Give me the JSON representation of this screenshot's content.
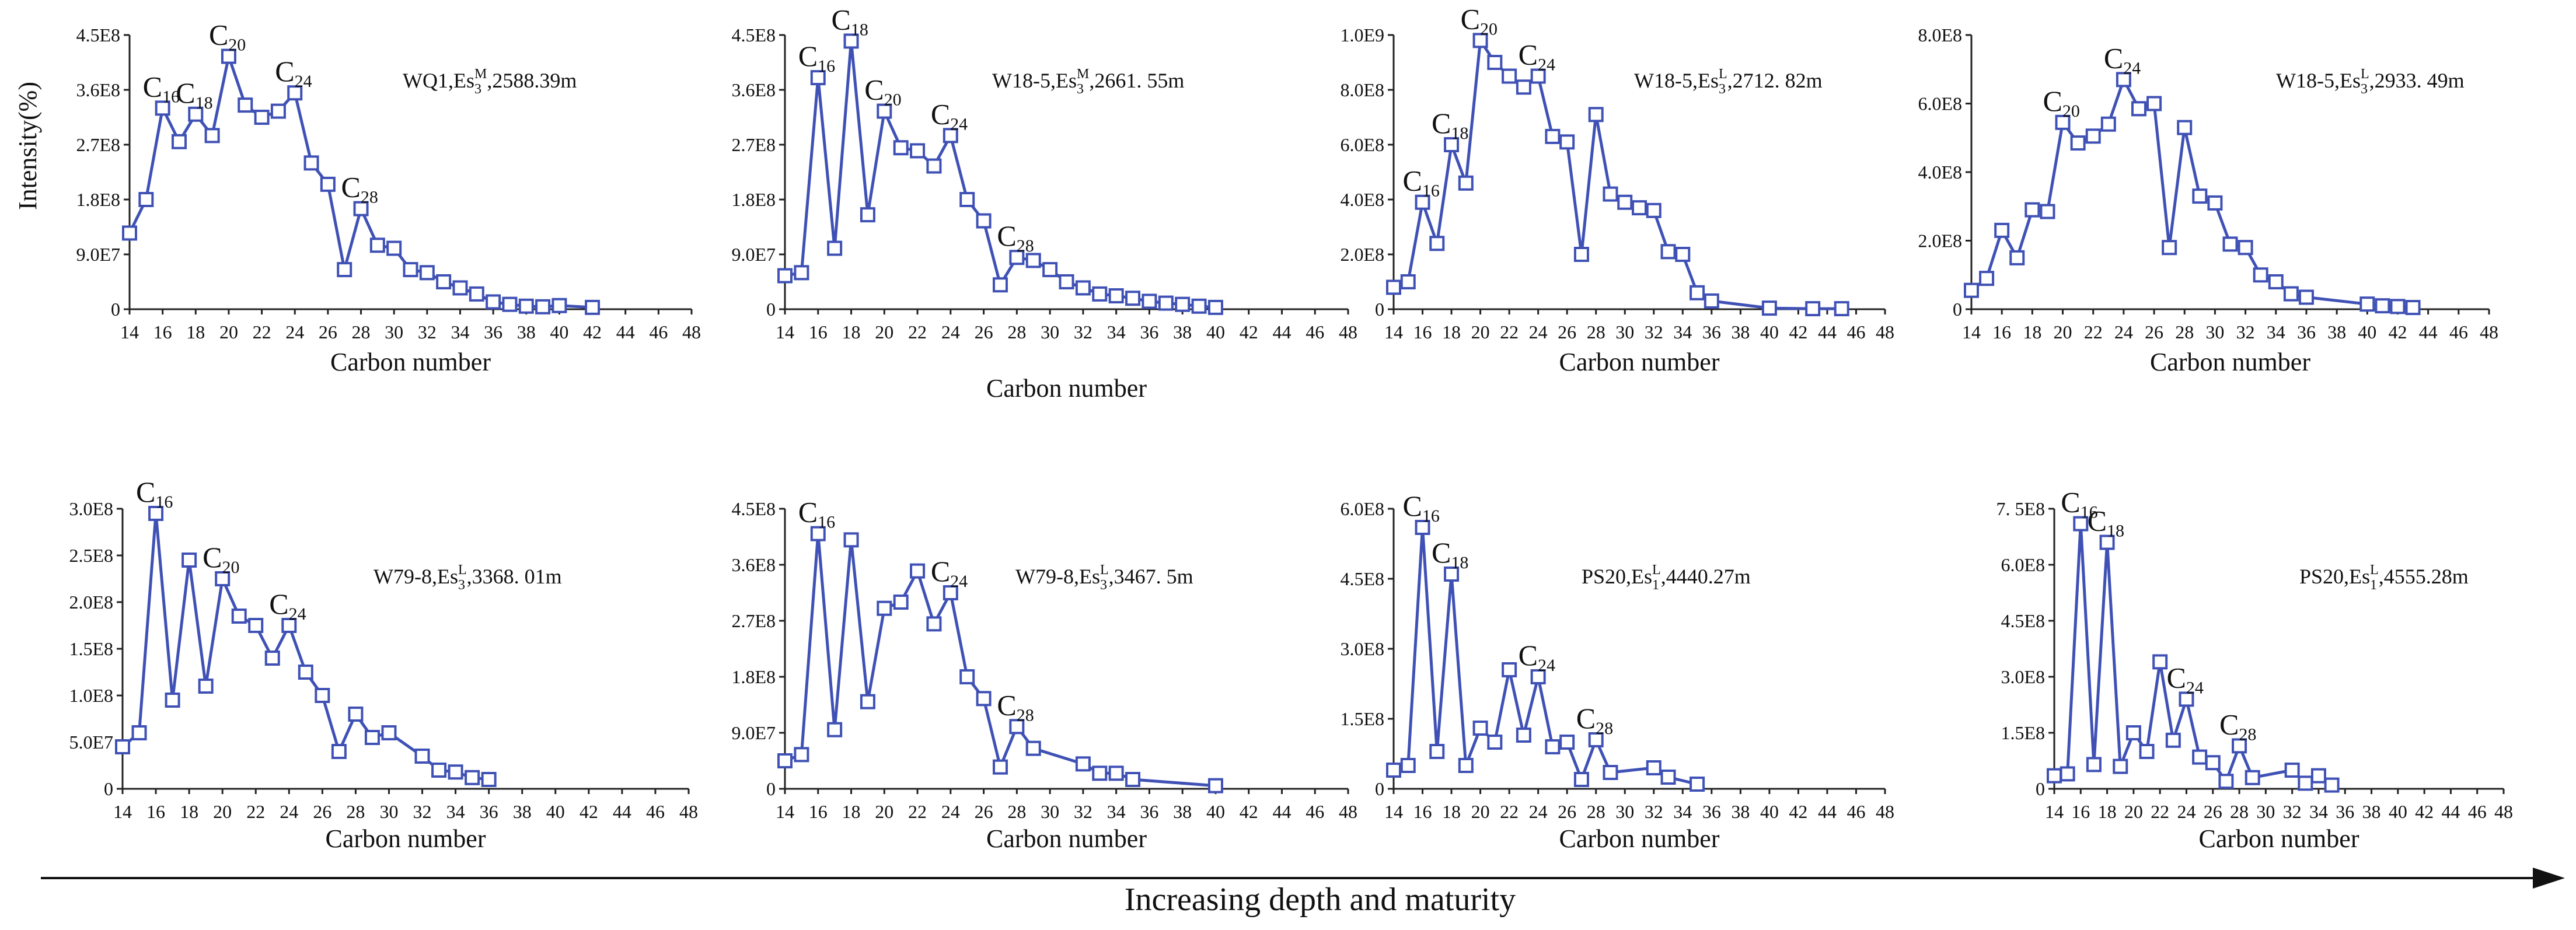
{
  "figure": {
    "ylabel": "Intensity(%)",
    "bottom_caption": "Increasing depth and maturity"
  },
  "chart_data": [
    {
      "type": "line",
      "title": "WQ1,Es3M,2588.39m",
      "sample": {
        "well": "WQ1,Es",
        "sub": "3",
        "sup": "M",
        "depth": ",2588.39m"
      },
      "xlabel": "Carbon number",
      "ylabel": "Intensity(%)",
      "xlim": [
        14,
        48
      ],
      "ylim": [
        0,
        450000000.0
      ],
      "xticks": [
        "14",
        "16",
        "18",
        "20",
        "22",
        "24",
        "26",
        "28",
        "30",
        "32",
        "34",
        "36",
        "38",
        "40",
        "42",
        "44",
        "46",
        "48"
      ],
      "yticks": [
        {
          "v": 0,
          "label": "0"
        },
        {
          "v": 90000000.0,
          "label": "9.0E7"
        },
        {
          "v": 180000000.0,
          "label": "1.8E8"
        },
        {
          "v": 270000000.0,
          "label": "2.7E8"
        },
        {
          "v": 360000000.0,
          "label": "3.6E8"
        },
        {
          "v": 450000000.0,
          "label": "4.5E8"
        }
      ],
      "x": [
        14,
        15,
        16,
        17,
        18,
        19,
        20,
        21,
        22,
        23,
        24,
        25,
        26,
        27,
        28,
        29,
        30,
        31,
        32,
        33,
        34,
        35,
        36,
        37,
        38,
        39,
        40,
        42
      ],
      "values": [
        125000000.0,
        180000000.0,
        330000000.0,
        275000000.0,
        320000000.0,
        285000000.0,
        415000000.0,
        335000000.0,
        315000000.0,
        325000000.0,
        355000000.0,
        240000000.0,
        205000000.0,
        65000000.0,
        165000000.0,
        105000000.0,
        100000000.0,
        65000000.0,
        60000000.0,
        45000000.0,
        35000000.0,
        25000000.0,
        12000000.0,
        8000000.0,
        5000000.0,
        4000000.0,
        6000000.0,
        3000000.0
      ],
      "annotations": [
        {
          "n": "16",
          "x": 16,
          "v": 330000000.0
        },
        {
          "n": "18",
          "x": 18,
          "v": 320000000.0
        },
        {
          "n": "20",
          "x": 20,
          "v": 415000000.0
        },
        {
          "n": "24",
          "x": 24,
          "v": 355000000.0
        },
        {
          "n": "28",
          "x": 28,
          "v": 165000000.0
        }
      ]
    },
    {
      "type": "line",
      "title": "W18-5,Es3M,2661. 55m",
      "sample": {
        "well": "W18-5,Es",
        "sub": "3",
        "sup": "M",
        "depth": ",2661. 55m"
      },
      "xlabel": "Carbon number",
      "ylabel": "",
      "xlim": [
        14,
        48
      ],
      "ylim": [
        0,
        450000000.0
      ],
      "xticks": [
        "14",
        "16",
        "18",
        "20",
        "22",
        "24",
        "26",
        "28",
        "30",
        "32",
        "34",
        "36",
        "38",
        "40",
        "42",
        "44",
        "46",
        "48"
      ],
      "yticks": [
        {
          "v": 0,
          "label": "0"
        },
        {
          "v": 90000000.0,
          "label": "9.0E7"
        },
        {
          "v": 180000000.0,
          "label": "1.8E8"
        },
        {
          "v": 270000000.0,
          "label": "2.7E8"
        },
        {
          "v": 360000000.0,
          "label": "3.6E8"
        },
        {
          "v": 450000000.0,
          "label": "4.5E8"
        }
      ],
      "x": [
        14,
        15,
        16,
        17,
        18,
        19,
        20,
        21,
        22,
        23,
        24,
        25,
        26,
        27,
        28,
        29,
        30,
        31,
        32,
        33,
        34,
        35,
        36,
        37,
        38,
        39,
        40
      ],
      "values": [
        55000000.0,
        60000000.0,
        380000000.0,
        100000000.0,
        440000000.0,
        155000000.0,
        325000000.0,
        265000000.0,
        260000000.0,
        235000000.0,
        285000000.0,
        180000000.0,
        145000000.0,
        40000000.0,
        85000000.0,
        80000000.0,
        65000000.0,
        45000000.0,
        35000000.0,
        25000000.0,
        22000000.0,
        18000000.0,
        13000000.0,
        10000000.0,
        8000000.0,
        5000000.0,
        3000000.0
      ],
      "annotations": [
        {
          "n": "16",
          "x": 16,
          "v": 380000000.0
        },
        {
          "n": "18",
          "x": 18,
          "v": 440000000.0
        },
        {
          "n": "20",
          "x": 20,
          "v": 325000000.0
        },
        {
          "n": "24",
          "x": 24,
          "v": 285000000.0
        },
        {
          "n": "28",
          "x": 28,
          "v": 85000000.0
        }
      ]
    },
    {
      "type": "line",
      "title": "W18-5,Es3L,2712. 82m",
      "sample": {
        "well": "W18-5,Es",
        "sub": "3",
        "sup": "L",
        "depth": ",2712. 82m"
      },
      "xlabel": "Carbon number",
      "ylabel": "",
      "xlim": [
        14,
        48
      ],
      "ylim": [
        0,
        1000000000.0
      ],
      "xticks": [
        "14",
        "16",
        "18",
        "20",
        "22",
        "24",
        "26",
        "28",
        "30",
        "32",
        "34",
        "36",
        "38",
        "40",
        "42",
        "44",
        "46",
        "48"
      ],
      "yticks": [
        {
          "v": 0,
          "label": "0"
        },
        {
          "v": 200000000.0,
          "label": "2.0E8"
        },
        {
          "v": 400000000.0,
          "label": "4.0E8"
        },
        {
          "v": 600000000.0,
          "label": "6.0E8"
        },
        {
          "v": 800000000.0,
          "label": "8.0E8"
        },
        {
          "v": 1000000000.0,
          "label": "1.0E9"
        }
      ],
      "x": [
        14,
        15,
        16,
        17,
        18,
        19,
        20,
        21,
        22,
        23,
        24,
        25,
        26,
        27,
        28,
        29,
        30,
        31,
        32,
        33,
        34,
        35,
        36,
        40,
        43,
        45
      ],
      "values": [
        80000000.0,
        100000000.0,
        390000000.0,
        240000000.0,
        600000000.0,
        460000000.0,
        980000000.0,
        900000000.0,
        850000000.0,
        810000000.0,
        850000000.0,
        630000000.0,
        610000000.0,
        200000000.0,
        710000000.0,
        420000000.0,
        390000000.0,
        370000000.0,
        360000000.0,
        210000000.0,
        200000000.0,
        60000000.0,
        30000000.0,
        4000000.0,
        2000000.0,
        2000000.0
      ],
      "annotations": [
        {
          "n": "16",
          "x": 16,
          "v": 390000000.0
        },
        {
          "n": "18",
          "x": 18,
          "v": 600000000.0
        },
        {
          "n": "20",
          "x": 20,
          "v": 980000000.0
        },
        {
          "n": "24",
          "x": 24,
          "v": 850000000.0
        }
      ]
    },
    {
      "type": "line",
      "title": "W18-5,Es3L,2933. 49m",
      "sample": {
        "well": "W18-5,Es",
        "sub": "3",
        "sup": "L",
        "depth": ",2933. 49m"
      },
      "xlabel": "Carbon number",
      "ylabel": "",
      "xlim": [
        14,
        48
      ],
      "ylim": [
        0,
        800000000.0
      ],
      "xticks": [
        "14",
        "16",
        "18",
        "20",
        "22",
        "24",
        "26",
        "28",
        "30",
        "32",
        "34",
        "36",
        "38",
        "40",
        "42",
        "44",
        "46",
        "48"
      ],
      "yticks": [
        {
          "v": 0,
          "label": "0"
        },
        {
          "v": 200000000.0,
          "label": "2.0E8"
        },
        {
          "v": 400000000.0,
          "label": "4.0E8"
        },
        {
          "v": 600000000.0,
          "label": "6.0E8"
        },
        {
          "v": 800000000.0,
          "label": "8.0E8"
        }
      ],
      "x": [
        14,
        15,
        16,
        17,
        18,
        19,
        20,
        21,
        22,
        23,
        24,
        25,
        26,
        27,
        28,
        29,
        30,
        31,
        32,
        33,
        34,
        35,
        36,
        40,
        41,
        42,
        43
      ],
      "values": [
        55000000.0,
        90000000.0,
        230000000.0,
        150000000.0,
        290000000.0,
        285000000.0,
        545000000.0,
        485000000.0,
        505000000.0,
        540000000.0,
        670000000.0,
        585000000.0,
        600000000.0,
        180000000.0,
        530000000.0,
        330000000.0,
        310000000.0,
        190000000.0,
        180000000.0,
        100000000.0,
        80000000.0,
        45000000.0,
        35000000.0,
        15000000.0,
        10000000.0,
        8000000.0,
        5000000.0
      ],
      "annotations": [
        {
          "n": "20",
          "x": 20,
          "v": 545000000.0
        },
        {
          "n": "24",
          "x": 24,
          "v": 670000000.0
        }
      ]
    },
    {
      "type": "line",
      "title": "W79-8,Es3L,3368. 01m",
      "sample": {
        "well": "W79-8,Es",
        "sub": "3",
        "sup": "L",
        "depth": ",3368. 01m"
      },
      "xlabel": "Carbon number",
      "ylabel": "",
      "xlim": [
        14,
        48
      ],
      "ylim": [
        0,
        300000000.0
      ],
      "xticks": [
        "14",
        "16",
        "18",
        "20",
        "22",
        "24",
        "26",
        "28",
        "30",
        "32",
        "34",
        "36",
        "38",
        "40",
        "42",
        "44",
        "46",
        "48"
      ],
      "yticks": [
        {
          "v": 0,
          "label": "0"
        },
        {
          "v": 50000000.0,
          "label": "5.0E7"
        },
        {
          "v": 100000000.0,
          "label": "1.0E8"
        },
        {
          "v": 150000000.0,
          "label": "1.5E8"
        },
        {
          "v": 200000000.0,
          "label": "2.0E8"
        },
        {
          "v": 250000000.0,
          "label": "2.5E8"
        },
        {
          "v": 300000000.0,
          "label": "3.0E8"
        }
      ],
      "x": [
        14,
        15,
        16,
        17,
        18,
        19,
        20,
        21,
        22,
        23,
        24,
        25,
        26,
        27,
        28,
        29,
        30,
        32,
        33,
        34,
        35,
        36
      ],
      "values": [
        45000000.0,
        60000000.0,
        295000000.0,
        95000000.0,
        245000000.0,
        110000000.0,
        225000000.0,
        185000000.0,
        175000000.0,
        140000000.0,
        175000000.0,
        125000000.0,
        100000000.0,
        40000000.0,
        80000000.0,
        55000000.0,
        60000000.0,
        35000000.0,
        20000000.0,
        18000000.0,
        12000000.0,
        10000000.0
      ],
      "annotations": [
        {
          "n": "16",
          "x": 16,
          "v": 295000000.0
        },
        {
          "n": "20",
          "x": 20,
          "v": 225000000.0
        },
        {
          "n": "24",
          "x": 24,
          "v": 175000000.0
        }
      ]
    },
    {
      "type": "line",
      "title": "W79-8,Es3L,3467. 5m",
      "sample": {
        "well": "W79-8,Es",
        "sub": "3",
        "sup": "L",
        "depth": ",3467. 5m"
      },
      "xlabel": "Carbon number",
      "ylabel": "",
      "xlim": [
        14,
        48
      ],
      "ylim": [
        0,
        450000000.0
      ],
      "xticks": [
        "14",
        "16",
        "18",
        "20",
        "22",
        "24",
        "26",
        "28",
        "30",
        "32",
        "34",
        "36",
        "38",
        "40",
        "42",
        "44",
        "46",
        "48"
      ],
      "yticks": [
        {
          "v": 0,
          "label": "0"
        },
        {
          "v": 90000000.0,
          "label": "9.0E7"
        },
        {
          "v": 180000000.0,
          "label": "1.8E8"
        },
        {
          "v": 270000000.0,
          "label": "2.7E8"
        },
        {
          "v": 360000000.0,
          "label": "3.6E8"
        },
        {
          "v": 450000000.0,
          "label": "4.5E8"
        }
      ],
      "x": [
        14,
        15,
        16,
        17,
        18,
        19,
        20,
        21,
        22,
        23,
        24,
        25,
        26,
        27,
        28,
        29,
        32,
        33,
        34,
        35,
        40
      ],
      "values": [
        45000000.0,
        55000000.0,
        410000000.0,
        95000000.0,
        400000000.0,
        140000000.0,
        290000000.0,
        300000000.0,
        350000000.0,
        265000000.0,
        315000000.0,
        180000000.0,
        145000000.0,
        35000000.0,
        100000000.0,
        65000000.0,
        40000000.0,
        25000000.0,
        25000000.0,
        15000000.0,
        5000000.0
      ],
      "annotations": [
        {
          "n": "16",
          "x": 16,
          "v": 410000000.0
        },
        {
          "n": "24",
          "x": 24,
          "v": 315000000.0
        },
        {
          "n": "28",
          "x": 28,
          "v": 100000000.0
        }
      ]
    },
    {
      "type": "line",
      "title": "PS20,Es1L,4440.27m",
      "sample": {
        "well": "PS20,Es",
        "sub": "1",
        "sup": "L",
        "depth": ",4440.27m"
      },
      "xlabel": "Carbon number",
      "ylabel": "",
      "xlim": [
        14,
        48
      ],
      "ylim": [
        0,
        600000000.0
      ],
      "xticks": [
        "14",
        "16",
        "18",
        "20",
        "22",
        "24",
        "26",
        "28",
        "30",
        "32",
        "34",
        "36",
        "38",
        "40",
        "42",
        "44",
        "46",
        "48"
      ],
      "yticks": [
        {
          "v": 0,
          "label": "0"
        },
        {
          "v": 150000000.0,
          "label": "1.5E8"
        },
        {
          "v": 300000000.0,
          "label": "3.0E8"
        },
        {
          "v": 450000000.0,
          "label": "4.5E8"
        },
        {
          "v": 600000000.0,
          "label": "6.0E8"
        }
      ],
      "x": [
        14,
        15,
        16,
        17,
        18,
        19,
        20,
        21,
        22,
        23,
        24,
        25,
        26,
        27,
        28,
        29,
        32,
        33,
        35
      ],
      "values": [
        40000000.0,
        50000000.0,
        560000000.0,
        80000000.0,
        460000000.0,
        50000000.0,
        130000000.0,
        100000000.0,
        255000000.0,
        115000000.0,
        240000000.0,
        90000000.0,
        100000000.0,
        20000000.0,
        105000000.0,
        35000000.0,
        45000000.0,
        25000000.0,
        10000000.0
      ],
      "annotations": [
        {
          "n": "16",
          "x": 16,
          "v": 560000000.0
        },
        {
          "n": "18",
          "x": 18,
          "v": 460000000.0
        },
        {
          "n": "24",
          "x": 24,
          "v": 240000000.0
        },
        {
          "n": "28",
          "x": 28,
          "v": 105000000.0
        }
      ]
    },
    {
      "type": "line",
      "title": "PS20,Es1L,4555.28m",
      "sample": {
        "well": "PS20,Es",
        "sub": "1",
        "sup": "L",
        "depth": ",4555.28m"
      },
      "xlabel": "Carbon number",
      "ylabel": "",
      "xlim": [
        14,
        48
      ],
      "ylim": [
        0,
        750000000.0
      ],
      "xticks": [
        "14",
        "16",
        "18",
        "20",
        "22",
        "24",
        "26",
        "28",
        "30",
        "32",
        "34",
        "36",
        "38",
        "40",
        "42",
        "44",
        "46",
        "48"
      ],
      "yticks": [
        {
          "v": 0,
          "label": "0"
        },
        {
          "v": 150000000.0,
          "label": "1.5E8"
        },
        {
          "v": 300000000.0,
          "label": "3.0E8"
        },
        {
          "v": 450000000.0,
          "label": "4.5E8"
        },
        {
          "v": 600000000.0,
          "label": "6.0E8"
        },
        {
          "v": 750000000.0,
          "label": "7. 5E8"
        }
      ],
      "x": [
        14,
        15,
        16,
        17,
        18,
        19,
        20,
        21,
        22,
        23,
        24,
        25,
        26,
        27,
        28,
        29,
        32,
        33,
        34,
        35
      ],
      "values": [
        35000000.0,
        40000000.0,
        710000000.0,
        65000000.0,
        660000000.0,
        60000000.0,
        150000000.0,
        100000000.0,
        340000000.0,
        130000000.0,
        240000000.0,
        85000000.0,
        70000000.0,
        20000000.0,
        115000000.0,
        30000000.0,
        50000000.0,
        15000000.0,
        35000000.0,
        10000000.0
      ],
      "annotations": [
        {
          "n": "16",
          "x": 16,
          "v": 710000000.0
        },
        {
          "n": "18",
          "x": 18,
          "v": 660000000.0
        },
        {
          "n": "24",
          "x": 24,
          "v": 240000000.0
        },
        {
          "n": "28",
          "x": 28,
          "v": 115000000.0
        }
      ]
    }
  ]
}
